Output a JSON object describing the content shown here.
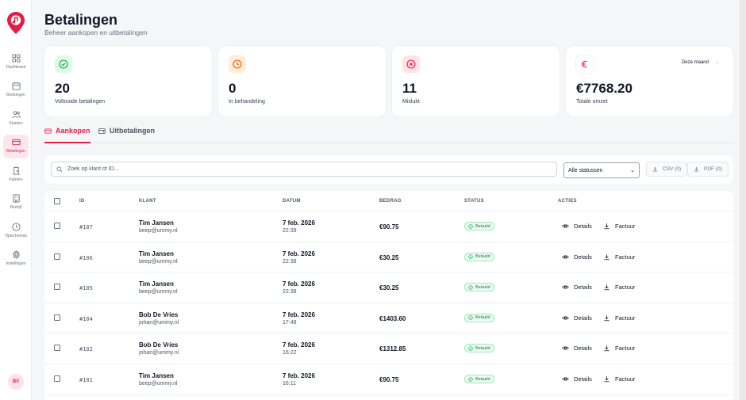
{
  "sidebar": {
    "items": [
      {
        "label": "Dashboard",
        "icon": "grid-icon",
        "active": false
      },
      {
        "label": "Boekingen",
        "icon": "calendar-icon",
        "active": false
      },
      {
        "label": "Klanten",
        "icon": "users-icon",
        "active": false
      },
      {
        "label": "Betalingen",
        "icon": "credit-card-icon",
        "active": true
      },
      {
        "label": "Kamers",
        "icon": "door-icon",
        "active": false
      },
      {
        "label": "Bedrijf",
        "icon": "building-icon",
        "active": false
      },
      {
        "label": "Tijdschemas",
        "icon": "clock-icon",
        "active": false
      },
      {
        "label": "Instellingen",
        "icon": "gear-icon",
        "active": false
      }
    ],
    "avatar": "BV"
  },
  "header": {
    "title": "Betalingen",
    "subtitle": "Beheer aankopen en uitbetalingen"
  },
  "stats": [
    {
      "value": "20",
      "label": "Voltooide betalingen",
      "icon": "check-circle-icon",
      "color": "#16a34a",
      "bg": "#dcfce7"
    },
    {
      "value": "0",
      "label": "In behandeling",
      "icon": "clock-icon",
      "color": "#ea580c",
      "bg": "#ffedd5"
    },
    {
      "value": "11",
      "label": "Mislukt",
      "icon": "x-circle-icon",
      "color": "#e11d48",
      "bg": "#ffe4e6"
    },
    {
      "value": "€7768.20",
      "label": "Totale omzet",
      "icon": "euro-icon",
      "color": "#e11d48",
      "bg": "#ffffff",
      "period": "Deze maand"
    }
  ],
  "tabs": [
    {
      "label": "Aankopen",
      "icon": "credit-card-icon",
      "active": true
    },
    {
      "label": "Uitbetalingen",
      "icon": "wallet-icon",
      "active": false
    }
  ],
  "toolbar": {
    "search_placeholder": "Zoek op klant of ID...",
    "status_select": "Alle statussen",
    "csv_label": "CSV (0)",
    "pdf_label": "PDF (0)"
  },
  "table": {
    "headers": {
      "id": "ID",
      "klant": "KLANT",
      "datum": "DATUM",
      "bedrag": "BEDRAG",
      "status": "STATUS",
      "acties": "ACTIES"
    },
    "details_label": "Details",
    "factuur_label": "Factuur",
    "rows": [
      {
        "id": "#107",
        "name": "Tim Jansen",
        "email": "beep@ummy.nl",
        "date": "7 feb. 2026",
        "time": "22:39",
        "amount": "€90.75",
        "status": "Betaald"
      },
      {
        "id": "#106",
        "name": "Tim Jansen",
        "email": "beep@ummy.nl",
        "date": "7 feb. 2026",
        "time": "22:38",
        "amount": "€30.25",
        "status": "Betaald"
      },
      {
        "id": "#105",
        "name": "Tim Jansen",
        "email": "beep@ummy.nl",
        "date": "7 feb. 2026",
        "time": "22:38",
        "amount": "€30.25",
        "status": "Betaald"
      },
      {
        "id": "#104",
        "name": "Bob De Vries",
        "email": "johan@ummy.nl",
        "date": "7 feb. 2026",
        "time": "17:48",
        "amount": "€1403.60",
        "status": "Betaald"
      },
      {
        "id": "#102",
        "name": "Bob De Vries",
        "email": "johan@ummy.nl",
        "date": "7 feb. 2026",
        "time": "16:22",
        "amount": "€1312.85",
        "status": "Betaald"
      },
      {
        "id": "#101",
        "name": "Tim Jansen",
        "email": "beep@ummy.nl",
        "date": "7 feb. 2026",
        "time": "16:11",
        "amount": "€90.75",
        "status": "Betaald"
      }
    ]
  }
}
